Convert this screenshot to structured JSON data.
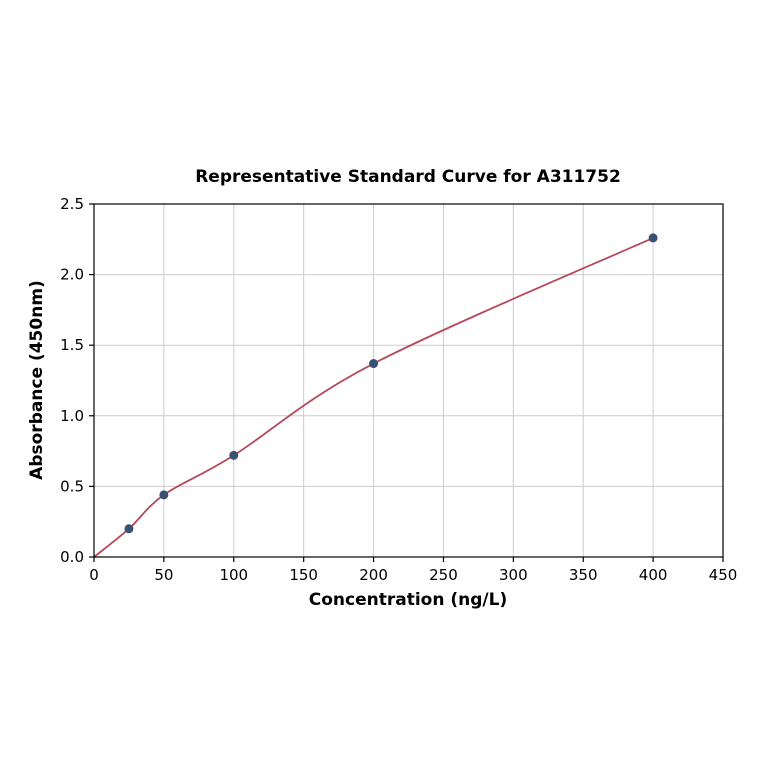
{
  "chart_data": {
    "type": "scatter",
    "title": "Representative Standard Curve for A311752",
    "xlabel": "Concentration (ng/L)",
    "ylabel": "Absorbance (450nm)",
    "x": [
      25,
      50,
      100,
      200,
      400
    ],
    "y": [
      0.2,
      0.44,
      0.72,
      1.37,
      2.26
    ],
    "curve_start_x": 0,
    "curve_start_y": 0,
    "xlim": [
      0,
      450
    ],
    "ylim": [
      0,
      2.5
    ],
    "xticks": [
      0,
      50,
      100,
      150,
      200,
      250,
      300,
      350,
      400,
      450
    ],
    "yticks": [
      0.0,
      0.5,
      1.0,
      1.5,
      2.0,
      2.5
    ],
    "grid": true,
    "legend": "none",
    "colors": {
      "curve": "#b5495b",
      "point": "#3a5174",
      "grid": "#cccccc",
      "spine": "#000000",
      "background": "#ffffff"
    }
  }
}
